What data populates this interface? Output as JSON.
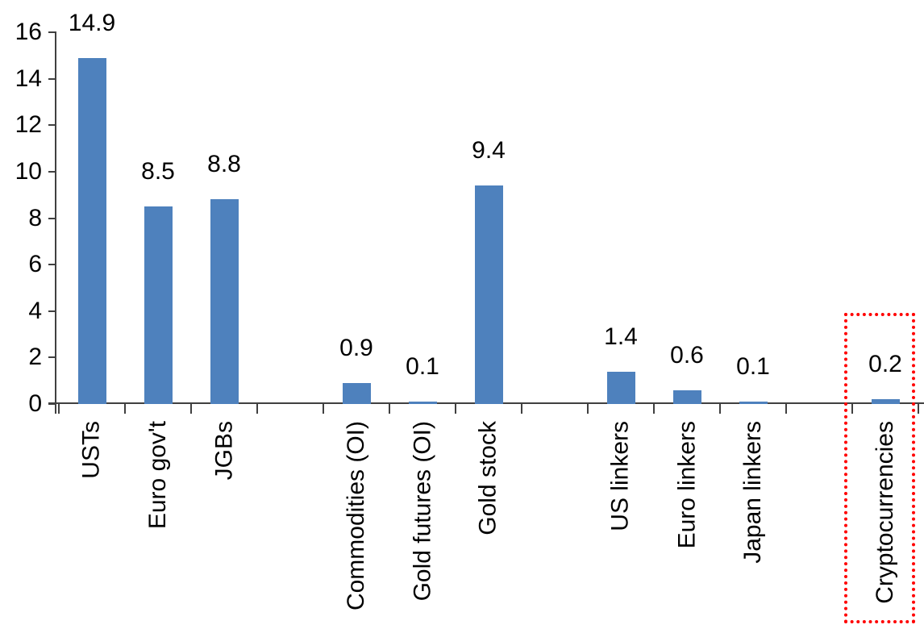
{
  "chart_data": {
    "type": "bar",
    "title": "",
    "xlabel": "",
    "ylabel": "",
    "categories": [
      "USTs",
      "Euro gov't",
      "JGBs",
      "Commodities (OI)",
      "Gold futures (OI)",
      "Gold stock",
      "US linkers",
      "Euro linkers",
      "Japan linkers",
      "Cryptocurrencies"
    ],
    "values": [
      14.9,
      8.5,
      8.8,
      0.9,
      0.1,
      9.4,
      1.4,
      0.6,
      0.1,
      0.2
    ],
    "value_labels": [
      "14.9",
      "8.5",
      "8.8",
      "0.9",
      "0.1",
      "9.4",
      "1.4",
      "0.6",
      "0.1",
      "0.2"
    ],
    "groups": [
      [
        "USTs",
        "Euro gov't",
        "JGBs"
      ],
      [
        "Commodities (OI)",
        "Gold futures (OI)",
        "Gold stock"
      ],
      [
        "US linkers",
        "Euro linkers",
        "Japan linkers"
      ],
      [
        "Cryptocurrencies"
      ]
    ],
    "gaps_after_indices": [
      2,
      5,
      8
    ],
    "ylim": [
      0,
      16
    ],
    "yticks": [
      0,
      2,
      4,
      6,
      8,
      10,
      12,
      14,
      16
    ],
    "grid": false,
    "legend": false,
    "bar_color": "#4E81BD",
    "axis_color": "#404040",
    "text_color": "#000000",
    "category_label_rotation_deg": -90,
    "highlight": {
      "category": "Cryptocurrencies",
      "box_color": "#FF0000",
      "box_style": "dotted"
    }
  }
}
